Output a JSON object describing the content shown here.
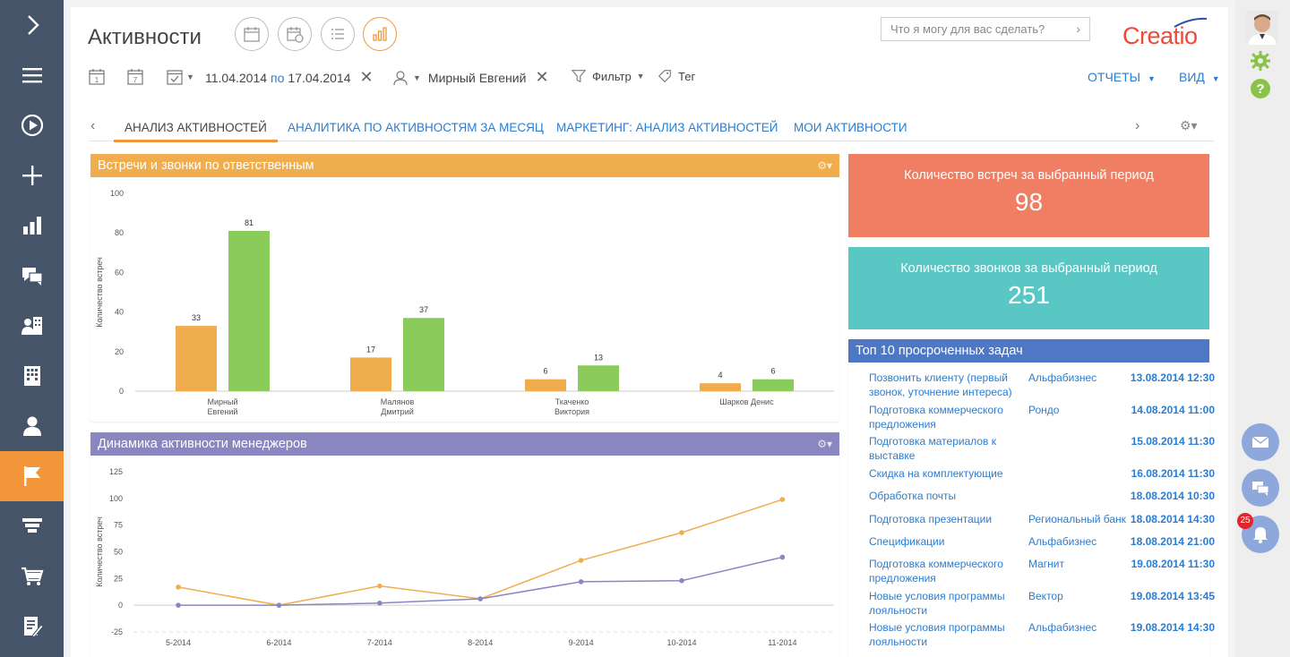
{
  "app": {
    "title": "Активности",
    "logo": "Creatio",
    "brand_color": "#ef4a36",
    "accent": "#f29639",
    "link_color": "#2a7dd1"
  },
  "search": {
    "placeholder": "Что я могу для вас сделать?"
  },
  "toolbar": {
    "date_from": "11.04.2014",
    "date_sep": "по",
    "date_to": "17.04.2014",
    "owner": "Мирный Евгений",
    "filter": "Фильтр",
    "tag": "Тег",
    "reports": "ОТЧЕТЫ",
    "view": "ВИД",
    "day_icon_num": "1",
    "week_icon_num": "7"
  },
  "tabs": [
    {
      "label": "АНАЛИЗ АКТИВНОСТЕЙ"
    },
    {
      "label": "АНАЛИТИКА ПО АКТИВНОСТЯМ ЗА МЕСЯЦ"
    },
    {
      "label": "МАРКЕТИНГ: АНАЛИЗ АКТИВНОСТЕЙ"
    },
    {
      "label": "МОИ АКТИВНОСТИ"
    }
  ],
  "kpis": [
    {
      "title": "Количество встреч за выбранный период",
      "value": "98",
      "color": "#f07e63"
    },
    {
      "title": "Количество звонков за выбранный период",
      "value": "251",
      "color": "#59c7c4"
    }
  ],
  "tasks": {
    "title": "Топ 10 просроченных задач",
    "rows": [
      {
        "name": "Позвонить клиенту (первый звонок, уточнение интереса)",
        "account": "Альфабизнес",
        "date": "13.08.2014 12:30"
      },
      {
        "name": "Подготовка коммерческого предложения",
        "account": "Рондо",
        "date": "14.08.2014 11:00"
      },
      {
        "name": "Подготовка материалов к выставке",
        "account": "",
        "date": "15.08.2014 11:30"
      },
      {
        "name": "Скидка на комплектующие",
        "account": "",
        "date": "16.08.2014 11:30"
      },
      {
        "name": "Обработка почты",
        "account": "",
        "date": "18.08.2014 10:30"
      },
      {
        "name": "Подготовка презентации",
        "account": "Региональный банк",
        "date": "18.08.2014 14:30"
      },
      {
        "name": "Спецификации",
        "account": "Альфабизнес",
        "date": "18.08.2014 21:00"
      },
      {
        "name": "Подготовка коммерческого предложения",
        "account": "Магнит",
        "date": "19.08.2014 11:30"
      },
      {
        "name": "Новые условия программы лояльности",
        "account": "Вектор",
        "date": "19.08.2014 13:45"
      },
      {
        "name": "Новые условия программы лояльности",
        "account": "Альфабизнес",
        "date": "19.08.2014 14:30"
      }
    ]
  },
  "notifications": {
    "count": "25"
  },
  "chart_data": [
    {
      "type": "bar",
      "title": "Встречи и звонки по ответственным",
      "ylabel": "Количество встреч",
      "ylim": [
        0,
        100
      ],
      "yticks": [
        0,
        20,
        40,
        60,
        80,
        100
      ],
      "categories": [
        [
          "Мирный",
          "Евгений"
        ],
        [
          "Малянов",
          "Дмитрий"
        ],
        [
          "Ткаченко",
          "Виктория"
        ],
        [
          "Шарков Денис"
        ]
      ],
      "series": [
        {
          "values": [
            33,
            17,
            6,
            4
          ],
          "color": "#f0ad4e"
        },
        {
          "values": [
            81,
            37,
            13,
            6
          ],
          "color": "#8bcb5b"
        }
      ],
      "header_color": "#f0ad4e"
    },
    {
      "type": "line",
      "title": "Динамика активности менеджеров",
      "ylabel": "Количество встреч",
      "ylim": [
        -25,
        125
      ],
      "yticks": [
        -25,
        0,
        25,
        50,
        75,
        100,
        125
      ],
      "categories": [
        "5-2014",
        "6-2014",
        "7-2014",
        "8-2014",
        "9-2014",
        "10-2014",
        "11-2014"
      ],
      "series": [
        {
          "values": [
            17,
            0,
            18,
            6,
            42,
            68,
            99
          ],
          "color": "#f0ad4e"
        },
        {
          "values": [
            0,
            0,
            2,
            6,
            22,
            23,
            45
          ],
          "color": "#8a86c0"
        }
      ],
      "header_color": "#8a86c0"
    }
  ]
}
